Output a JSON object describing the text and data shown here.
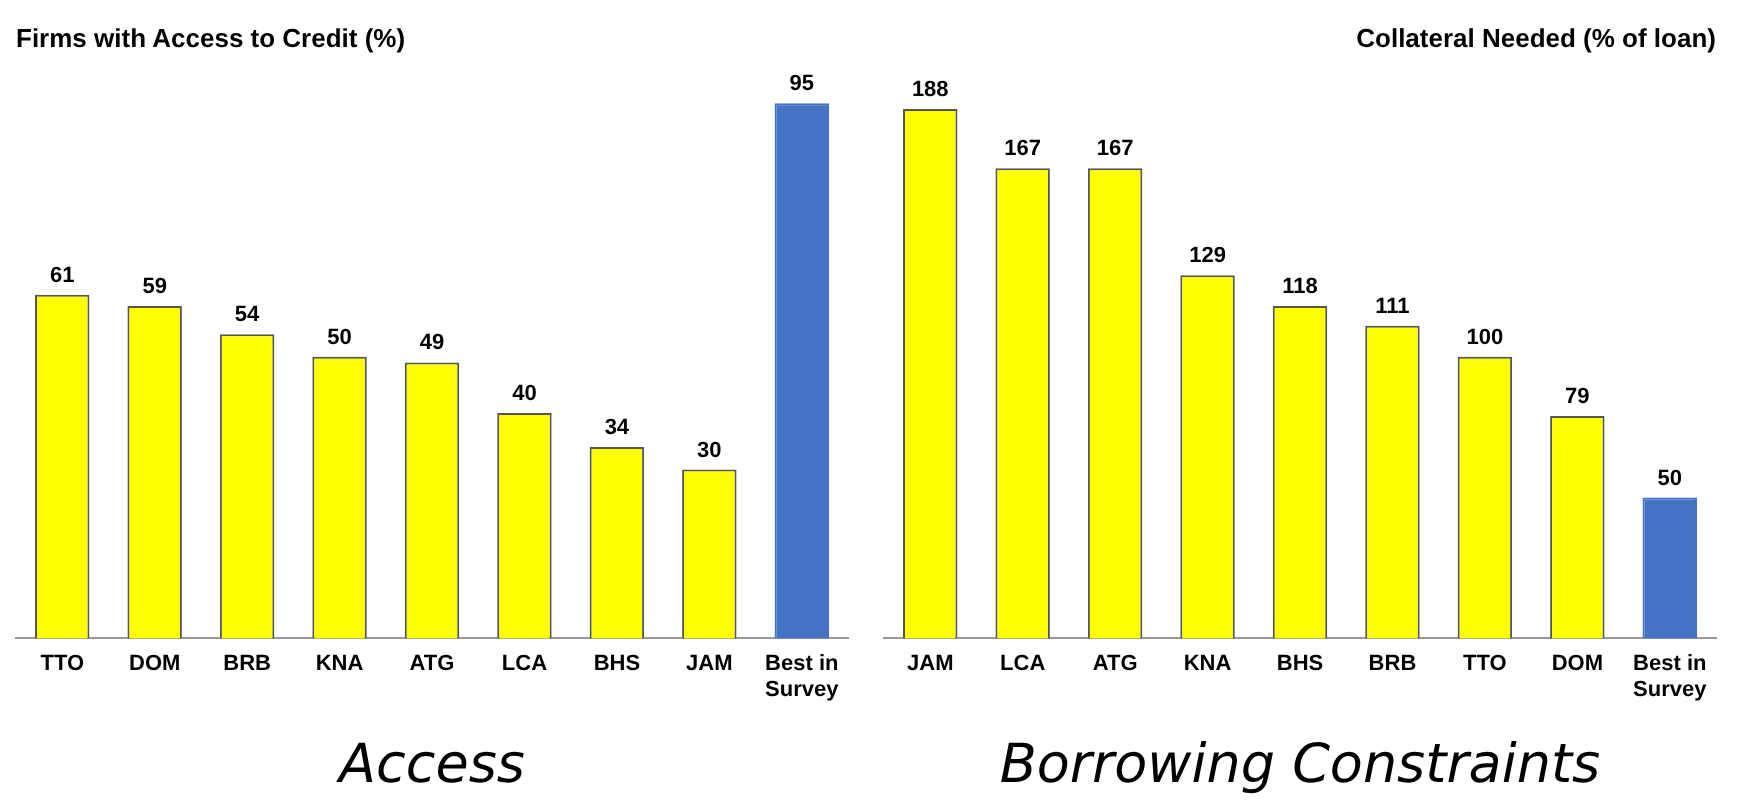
{
  "chart_data": [
    {
      "type": "bar",
      "title": "Firms with Access to Credit (%)",
      "xlabel": "Access",
      "categories": [
        "TTO",
        "DOM",
        "BRB",
        "KNA",
        "ATG",
        "LCA",
        "BHS",
        "JAM",
        "Best in Survey"
      ],
      "values": [
        61,
        59,
        54,
        50,
        49,
        40,
        34,
        30,
        95
      ],
      "colors": [
        "#ffff00",
        "#ffff00",
        "#ffff00",
        "#ffff00",
        "#ffff00",
        "#ffff00",
        "#ffff00",
        "#ffff00",
        "#4472c4"
      ],
      "data_labels": true,
      "grid": false,
      "legend": false,
      "tick_labels": "x"
    },
    {
      "type": "bar",
      "title": "Collateral Needed (% of loan)",
      "xlabel": "Borrowing Constraints",
      "categories": [
        "JAM",
        "LCA",
        "ATG",
        "KNA",
        "BHS",
        "BRB",
        "TTO",
        "DOM",
        "Best in Survey"
      ],
      "values": [
        188,
        167,
        167,
        129,
        118,
        111,
        100,
        79,
        50
      ],
      "colors": [
        "#ffff00",
        "#ffff00",
        "#ffff00",
        "#ffff00",
        "#ffff00",
        "#ffff00",
        "#ffff00",
        "#ffff00",
        "#4472c4"
      ],
      "data_labels": true,
      "grid": false,
      "legend": false,
      "tick_labels": "x"
    }
  ]
}
